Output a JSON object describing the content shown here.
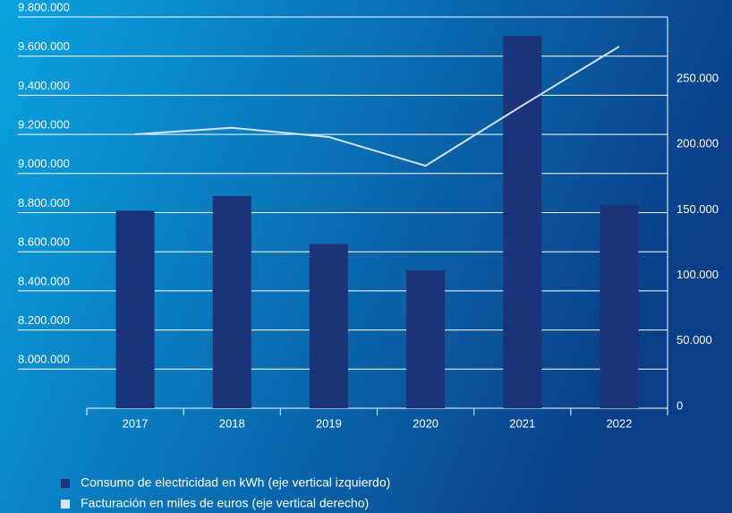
{
  "chart_data": {
    "type": "bar",
    "categories": [
      "2017",
      "2018",
      "2019",
      "2020",
      "2021",
      "2022"
    ],
    "series": [
      {
        "name": "Consumo de electricidad en kWh (eje vertical izquierdo)",
        "color": "#1b3479",
        "type": "bar",
        "values": [
          8810000,
          8885000,
          8640000,
          8505000,
          9704000,
          8840000
        ]
      },
      {
        "name": "Facturación en miles de euros (eje vertical derecho)",
        "color": "#d4e4f4",
        "type": "line",
        "axis": "y2",
        "values": [
          209000,
          214000,
          207000,
          185000,
          231000,
          276000
        ]
      }
    ],
    "ylim": [
      7800000,
      9800000
    ],
    "yticks": [
      {
        "value": 8000000,
        "label": "8.000.000"
      },
      {
        "value": 8200000,
        "label": "8.200.000"
      },
      {
        "value": 8400000,
        "label": "8.400.000"
      },
      {
        "value": 8600000,
        "label": "8.600.000"
      },
      {
        "value": 8800000,
        "label": "8.800.000"
      },
      {
        "value": 9000000,
        "label": "9.000.000"
      },
      {
        "value": 9200000,
        "label": "9.200.000"
      },
      {
        "value": 9400000,
        "label": "9.400.000"
      },
      {
        "value": 9600000,
        "label": "9.600.000"
      },
      {
        "value": 9800000,
        "label": "9.800.000"
      }
    ],
    "y2lim": [
      0,
      298500
    ],
    "y2ticks": [
      0,
      {
        "value": 50000,
        "label": "50.000"
      },
      {
        "value": 100000,
        "label": "100.000"
      },
      {
        "value": 150000,
        "label": "150.000"
      },
      {
        "value": 200000,
        "label": "200.000"
      },
      {
        "value": 250000,
        "label": "250.000"
      }
    ],
    "grid": true
  }
}
